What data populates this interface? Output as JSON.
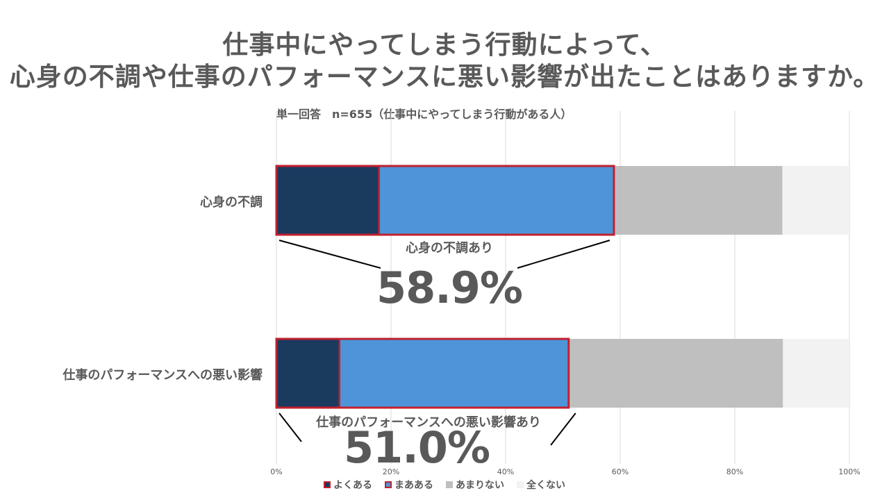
{
  "title": {
    "line1": "仕事中にやってしまう行動によって、",
    "line2": "心身の不調や仕事のパフォーマンスに悪い影響が出たことはありますか。"
  },
  "subtitle": "単一回答　n=655（仕事中にやってしまう行動がある人）",
  "chart_data": {
    "type": "bar",
    "orientation": "horizontal",
    "stacked": true,
    "categories": [
      "心身の不調",
      "仕事のパフォーマンスへの悪い影響"
    ],
    "series": [
      {
        "name": "よくある",
        "color": "#1a3a5e",
        "values": [
          17.9,
          11.0
        ]
      },
      {
        "name": "まあある",
        "color": "#4f94d9",
        "values": [
          41.0,
          40.0
        ]
      },
      {
        "name": "あまりない",
        "color": "#bfbfbf",
        "values": [
          29.4,
          37.4
        ]
      },
      {
        "name": "全くない",
        "color": "#f2f2f2",
        "values": [
          11.7,
          11.6
        ]
      }
    ],
    "xlim": [
      0,
      100
    ],
    "xticks": [
      "0%",
      "20%",
      "40%",
      "60%",
      "80%",
      "100%"
    ],
    "grid": true,
    "legend": "bottom",
    "highlight_color": "#c0202e",
    "annotations": [
      {
        "label": "心身の不調あり",
        "value": "58.9%"
      },
      {
        "label": "仕事のパフォーマンスへの悪い影響あり",
        "value": "51.0%"
      }
    ]
  }
}
